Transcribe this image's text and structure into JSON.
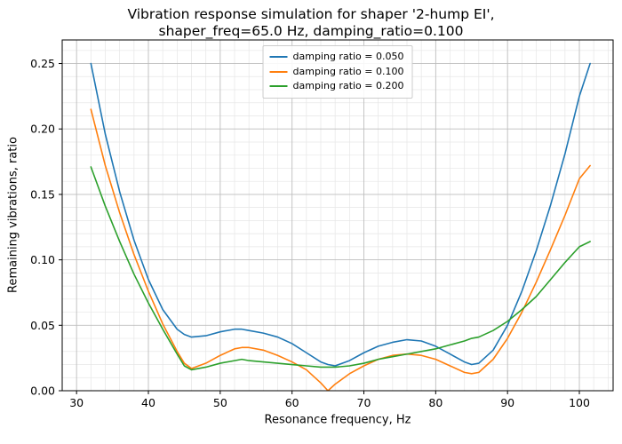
{
  "chart_data": {
    "type": "line",
    "title": "Vibration response simulation for shaper '2-hump EI', shaper_freq=65.0 Hz, damping_ratio=0.100",
    "title_lines": [
      "Vibration response simulation for shaper '2-hump EI',",
      "shaper_freq=65.0 Hz, damping_ratio=0.100"
    ],
    "xlabel": "Resonance frequency, Hz",
    "ylabel": "Remaining vibrations, ratio",
    "xlim": [
      28.0,
      104.7
    ],
    "ylim": [
      0.0,
      0.268
    ],
    "xticks": [
      30,
      40,
      50,
      60,
      70,
      80,
      90,
      100
    ],
    "yticks": [
      0.0,
      0.05,
      0.1,
      0.15,
      0.2,
      0.25
    ],
    "minor_x_step": 2,
    "minor_y_step": 0.01,
    "grid": true,
    "legend_position": "upper center",
    "x": [
      32,
      34,
      36,
      38,
      40,
      42,
      44,
      45,
      46,
      48,
      50,
      52,
      53,
      54,
      56,
      58,
      60,
      62,
      64,
      65,
      66,
      68,
      70,
      72,
      74,
      76,
      78,
      80,
      82,
      84,
      85,
      86,
      88,
      90,
      92,
      94,
      96,
      98,
      100,
      101.5
    ],
    "series": [
      {
        "name": "damping ratio = 0.050",
        "color": "#1f77b4",
        "values": [
          0.25,
          0.196,
          0.152,
          0.115,
          0.085,
          0.062,
          0.047,
          0.043,
          0.041,
          0.042,
          0.045,
          0.047,
          0.047,
          0.046,
          0.044,
          0.041,
          0.036,
          0.029,
          0.022,
          0.02,
          0.019,
          0.023,
          0.029,
          0.034,
          0.037,
          0.039,
          0.038,
          0.034,
          0.028,
          0.022,
          0.02,
          0.021,
          0.031,
          0.05,
          0.076,
          0.107,
          0.142,
          0.181,
          0.225,
          0.25
        ]
      },
      {
        "name": "damping ratio = 0.100",
        "color": "#ff7f0e",
        "values": [
          0.215,
          0.172,
          0.136,
          0.104,
          0.076,
          0.051,
          0.03,
          0.021,
          0.017,
          0.021,
          0.027,
          0.032,
          0.033,
          0.033,
          0.031,
          0.027,
          0.022,
          0.016,
          0.006,
          0.0,
          0.005,
          0.013,
          0.019,
          0.024,
          0.027,
          0.028,
          0.027,
          0.024,
          0.019,
          0.014,
          0.013,
          0.014,
          0.024,
          0.04,
          0.06,
          0.083,
          0.108,
          0.134,
          0.162,
          0.172
        ]
      },
      {
        "name": "damping ratio = 0.200",
        "color": "#2ca02c",
        "values": [
          0.171,
          0.141,
          0.114,
          0.089,
          0.067,
          0.047,
          0.028,
          0.019,
          0.016,
          0.018,
          0.021,
          0.023,
          0.024,
          0.023,
          0.022,
          0.021,
          0.02,
          0.019,
          0.018,
          0.018,
          0.018,
          0.019,
          0.021,
          0.024,
          0.026,
          0.028,
          0.03,
          0.032,
          0.035,
          0.038,
          0.04,
          0.041,
          0.046,
          0.053,
          0.062,
          0.072,
          0.085,
          0.098,
          0.11,
          0.114
        ]
      }
    ],
    "colors": {
      "major_grid": "#bdbdbd",
      "minor_grid": "#e6e6e6",
      "axes_border": "#000000"
    }
  }
}
